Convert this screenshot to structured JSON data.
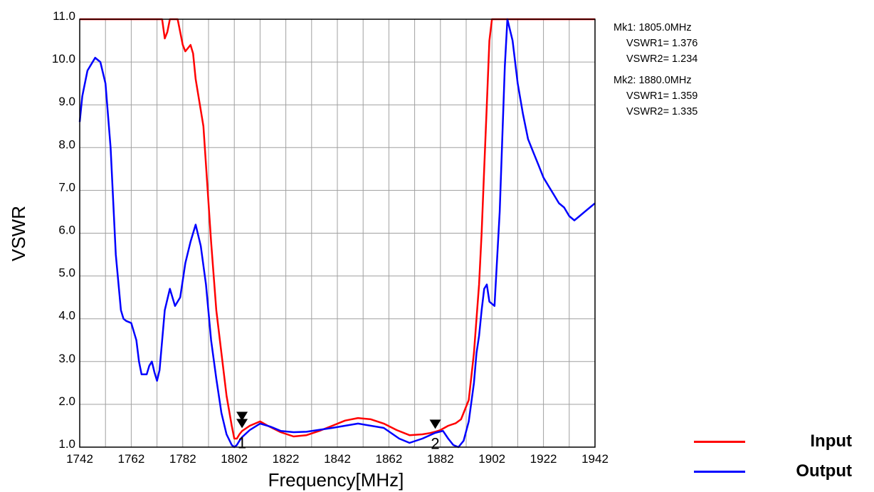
{
  "chart_data": {
    "type": "line",
    "xlabel": "Frequency[MHz]",
    "ylabel": "VSWR",
    "xlim": [
      1742,
      1942
    ],
    "ylim": [
      1.0,
      11.0
    ],
    "x_ticks": [
      "1742",
      "1762",
      "1782",
      "1802",
      "1822",
      "1842",
      "1862",
      "1882",
      "1902",
      "1922",
      "1942"
    ],
    "y_ticks": [
      "1.0",
      "2.0",
      "3.0",
      "4.0",
      "5.0",
      "6.0",
      "7.0",
      "8.0",
      "9.0",
      "10.0",
      "11.0"
    ],
    "x_grid_step": 10,
    "grid": true,
    "legend_position": "bottom-right",
    "series": [
      {
        "name": "Input",
        "color": "#ff0000",
        "x": [
          1742,
          1774,
          1775,
          1776,
          1777,
          1780,
          1782,
          1783,
          1785,
          1786,
          1787,
          1790,
          1793,
          1795,
          1797,
          1799,
          1801,
          1802,
          1803,
          1804,
          1805,
          1808,
          1812,
          1815,
          1820,
          1825,
          1830,
          1835,
          1840,
          1845,
          1850,
          1855,
          1860,
          1865,
          1870,
          1875,
          1878,
          1880,
          1882,
          1885,
          1888,
          1890,
          1893,
          1895,
          1897,
          1898,
          1899,
          1900,
          1901,
          1902,
          1942
        ],
        "values": [
          11.0,
          11.0,
          10.55,
          10.7,
          11.0,
          11.0,
          10.4,
          10.25,
          10.4,
          10.2,
          9.6,
          8.5,
          5.8,
          4.2,
          3.2,
          2.2,
          1.5,
          1.2,
          1.2,
          1.3,
          1.376,
          1.5,
          1.6,
          1.5,
          1.35,
          1.25,
          1.28,
          1.38,
          1.5,
          1.62,
          1.68,
          1.65,
          1.55,
          1.4,
          1.28,
          1.3,
          1.33,
          1.359,
          1.4,
          1.5,
          1.56,
          1.65,
          2.1,
          3.2,
          4.8,
          6.0,
          7.5,
          9.0,
          10.5,
          11.0,
          11.0
        ]
      },
      {
        "name": "Output",
        "color": "#0000ff",
        "x": [
          1742,
          1743,
          1745,
          1748,
          1750,
          1752,
          1754,
          1756,
          1758,
          1759,
          1760,
          1762,
          1764,
          1765,
          1766,
          1768,
          1769,
          1770,
          1771,
          1772,
          1773,
          1775,
          1777,
          1779,
          1781,
          1783,
          1785,
          1787,
          1789,
          1791,
          1793,
          1795,
          1797,
          1799,
          1801,
          1802,
          1803,
          1804,
          1805,
          1808,
          1812,
          1816,
          1820,
          1825,
          1830,
          1840,
          1850,
          1860,
          1866,
          1870,
          1875,
          1880,
          1883,
          1885,
          1887,
          1889,
          1891,
          1893,
          1895,
          1896,
          1897,
          1898,
          1899,
          1900,
          1901,
          1903,
          1905,
          1907,
          1908,
          1910,
          1912,
          1914,
          1916,
          1918,
          1920,
          1922,
          1924,
          1926,
          1928,
          1930,
          1932,
          1934,
          1936,
          1938,
          1940,
          1942
        ],
        "values": [
          8.6,
          9.2,
          9.8,
          10.1,
          10.0,
          9.5,
          8.0,
          5.5,
          4.2,
          4.0,
          3.95,
          3.9,
          3.5,
          3.0,
          2.7,
          2.7,
          2.9,
          3.0,
          2.75,
          2.55,
          2.8,
          4.2,
          4.7,
          4.3,
          4.5,
          5.3,
          5.8,
          6.2,
          5.7,
          4.8,
          3.5,
          2.6,
          1.8,
          1.3,
          1.05,
          1.0,
          1.05,
          1.15,
          1.234,
          1.4,
          1.55,
          1.48,
          1.38,
          1.35,
          1.36,
          1.45,
          1.55,
          1.45,
          1.2,
          1.1,
          1.2,
          1.335,
          1.38,
          1.2,
          1.05,
          1.0,
          1.15,
          1.6,
          2.5,
          3.2,
          3.6,
          4.2,
          4.7,
          4.8,
          4.4,
          4.3,
          6.5,
          9.9,
          11.0,
          10.5,
          9.5,
          8.8,
          8.2,
          7.9,
          7.6,
          7.3,
          7.1,
          6.9,
          6.7,
          6.6,
          6.4,
          6.3,
          6.4,
          6.5,
          6.6,
          6.7
        ]
      }
    ],
    "markers": [
      {
        "label": "1",
        "x": 1805.0
      },
      {
        "label": "2",
        "x": 1880.0
      }
    ]
  },
  "marker_info": [
    {
      "title": "Mk1: 1805.0MHz",
      "vswr1": "VSWR1= 1.376",
      "vswr2": "VSWR2= 1.234"
    },
    {
      "title": "Mk2: 1880.0MHz",
      "vswr1": "VSWR1= 1.359",
      "vswr2": "VSWR2= 1.335"
    }
  ],
  "legend": {
    "items": [
      {
        "label": "Input",
        "color": "#ff0000"
      },
      {
        "label": "Output",
        "color": "#0000ff"
      }
    ]
  }
}
